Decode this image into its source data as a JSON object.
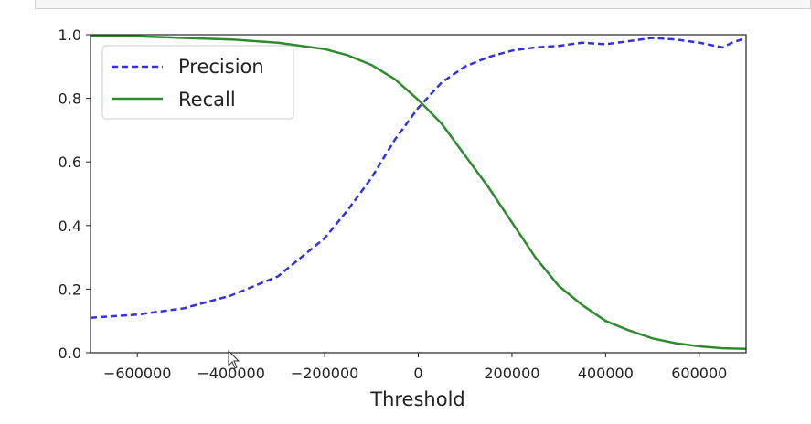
{
  "chart_data": {
    "type": "line",
    "title": "",
    "xlabel": "Threshold",
    "ylabel": "",
    "xlim": [
      -700000,
      700000
    ],
    "ylim": [
      0,
      1
    ],
    "x_ticks": [
      -600000,
      -400000,
      -200000,
      0,
      200000,
      400000,
      600000
    ],
    "x_tick_labels": [
      "−600000",
      "−400000",
      "−200000",
      "0",
      "200000",
      "400000",
      "600000"
    ],
    "y_ticks": [
      0,
      0.2,
      0.4,
      0.6,
      0.8,
      1.0
    ],
    "y_tick_labels": [
      "0.0",
      "0.2",
      "0.4",
      "0.6",
      "0.8",
      "1.0"
    ],
    "grid": false,
    "legend_position": "top-left",
    "series": [
      {
        "name": "Precision",
        "color": "#3333dd",
        "style": "dashed",
        "x": [
          -700000,
          -600000,
          -500000,
          -400000,
          -300000,
          -200000,
          -150000,
          -100000,
          -50000,
          0,
          50000,
          100000,
          150000,
          200000,
          250000,
          300000,
          350000,
          400000,
          450000,
          500000,
          550000,
          600000,
          650000,
          670000,
          700000
        ],
        "y": [
          0.11,
          0.12,
          0.14,
          0.18,
          0.24,
          0.36,
          0.45,
          0.55,
          0.67,
          0.77,
          0.85,
          0.9,
          0.93,
          0.95,
          0.96,
          0.965,
          0.975,
          0.97,
          0.98,
          0.99,
          0.985,
          0.975,
          0.96,
          0.975,
          0.99
        ]
      },
      {
        "name": "Recall",
        "color": "#2e8b2e",
        "style": "solid",
        "x": [
          -700000,
          -600000,
          -500000,
          -400000,
          -300000,
          -200000,
          -150000,
          -100000,
          -50000,
          0,
          50000,
          100000,
          150000,
          200000,
          250000,
          300000,
          350000,
          400000,
          450000,
          500000,
          550000,
          600000,
          650000,
          700000
        ],
        "y": [
          0.998,
          0.995,
          0.99,
          0.985,
          0.975,
          0.955,
          0.935,
          0.905,
          0.86,
          0.795,
          0.72,
          0.62,
          0.52,
          0.41,
          0.3,
          0.21,
          0.15,
          0.1,
          0.07,
          0.045,
          0.03,
          0.02,
          0.014,
          0.012
        ]
      }
    ]
  }
}
